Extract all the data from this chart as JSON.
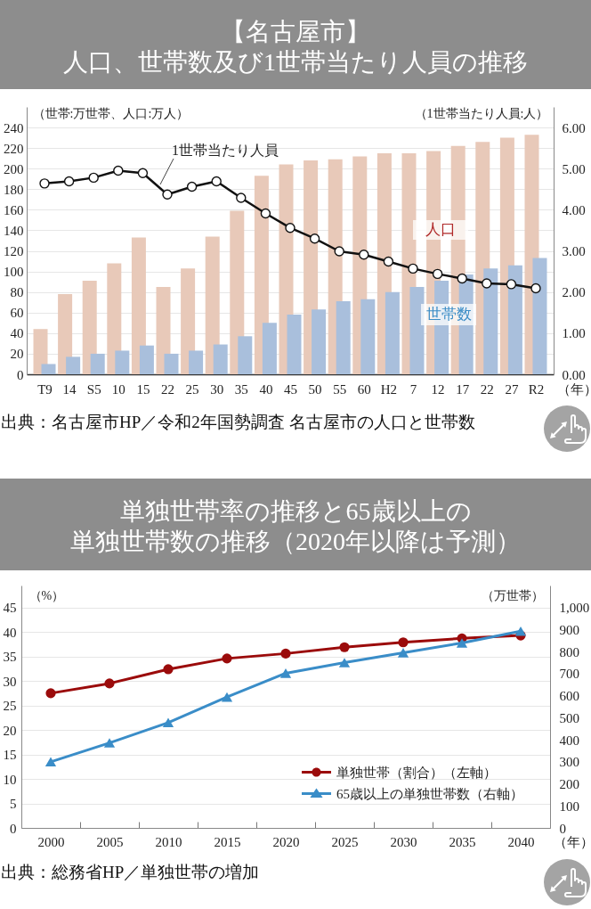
{
  "chart_data": [
    {
      "type": "bar",
      "title": "【名古屋市】人口、世帯数及び1世帯当たり人員の推移",
      "xlabel": "（年）",
      "ylabel": "（世帯:万世帯、人口:万人）",
      "y2label": "（1世帯当たり人員:人）",
      "categories": [
        "T9",
        "14",
        "S5",
        "10",
        "15",
        "22",
        "25",
        "30",
        "35",
        "40",
        "45",
        "50",
        "55",
        "60",
        "H2",
        "7",
        "12",
        "17",
        "22",
        "27",
        "R2"
      ],
      "series": [
        {
          "name": "人口",
          "color": "#e8c9b9",
          "values": [
            44,
            78,
            91,
            108,
            133,
            85,
            103,
            134,
            159,
            193,
            204,
            208,
            209,
            212,
            215,
            215,
            217,
            222,
            226,
            230,
            233
          ]
        },
        {
          "name": "世帯数",
          "color": "#a9bfdc",
          "values": [
            10,
            17,
            20,
            23,
            28,
            20,
            23,
            29,
            37,
            50,
            58,
            63,
            71,
            73,
            80,
            85,
            91,
            97,
            103,
            106,
            113
          ]
        },
        {
          "name": "1世帯当たり人員",
          "type": "line",
          "axis": "y2",
          "marker": "circle",
          "color": "#111111",
          "values": [
            4.64,
            4.69,
            4.78,
            4.95,
            4.89,
            4.37,
            4.56,
            4.69,
            4.29,
            3.91,
            3.56,
            3.3,
            2.99,
            2.91,
            2.74,
            2.57,
            2.44,
            2.33,
            2.21,
            2.19,
            2.09
          ]
        }
      ],
      "ylim": [
        0,
        260
      ],
      "yticks": [
        0,
        20,
        40,
        60,
        80,
        100,
        120,
        140,
        160,
        180,
        200,
        220,
        240
      ],
      "y2lim": [
        0,
        6.5
      ],
      "y2ticks": [
        {
          "value": 0,
          "label": "0.00"
        },
        {
          "value": 1,
          "label": "1.00"
        },
        {
          "value": 2,
          "label": "2.00"
        },
        {
          "value": 3,
          "label": "3.00"
        },
        {
          "value": 4,
          "label": "4.00"
        },
        {
          "value": 5,
          "label": "5.00"
        },
        {
          "value": 6,
          "label": "6.00"
        }
      ],
      "grid": "y",
      "annotations": [
        "出典：名古屋市HP／令和2年国勢調査 名古屋市の人口と世帯数"
      ]
    },
    {
      "type": "line",
      "title": "単独世帯率の推移と65歳以上の単独世帯数の推移（2020年以降は予測）",
      "xlabel": "（年）",
      "ylabel": "（%）",
      "y2label": "（万世帯）",
      "categories": [
        "2000",
        "2005",
        "2010",
        "2015",
        "2020",
        "2025",
        "2030",
        "2035",
        "2040"
      ],
      "series": [
        {
          "name": "単独世帯（割合）（左軸）",
          "color": "#9b0b0b",
          "marker": "circle",
          "values": [
            27.5,
            29.5,
            32.4,
            34.6,
            35.6,
            36.9,
            37.9,
            38.7,
            39.3
          ]
        },
        {
          "name": "65歳以上の単独世帯数（右軸）",
          "color": "#3a8dc8",
          "marker": "triangle",
          "axis": "y2",
          "values": [
            300,
            386,
            478,
            594,
            702,
            750,
            795,
            839,
            893
          ]
        }
      ],
      "ylim": [
        0,
        49.5
      ],
      "yticks": [
        0,
        5,
        10,
        15,
        20,
        25,
        30,
        35,
        40,
        45
      ],
      "y2lim": [
        0,
        1100
      ],
      "y2ticks": [
        0,
        100,
        200,
        300,
        400,
        500,
        600,
        700,
        800,
        900,
        {
          "value": 1000,
          "label": "1,000"
        }
      ],
      "grid": "y",
      "legend": "bottom right",
      "annotations": [
        "出典：総務省HP／単独世帯の増加"
      ]
    }
  ]
}
